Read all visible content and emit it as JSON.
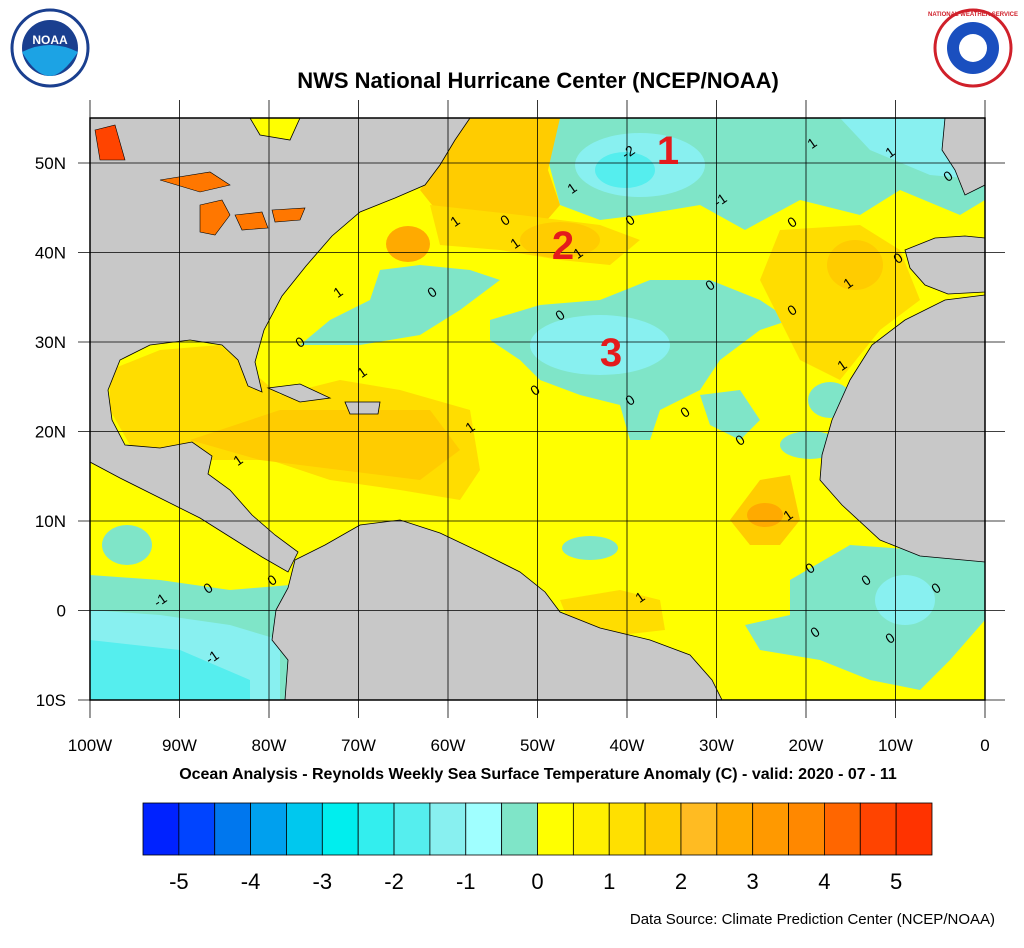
{
  "header": {
    "title": "NWS National Hurricane Center (NCEP/NOAA)",
    "logo_left": "NOAA",
    "logo_right": "NATIONAL WEATHER SERVICE"
  },
  "map": {
    "lat_labels": [
      "50N",
      "40N",
      "30N",
      "20N",
      "10N",
      "0",
      "10S"
    ],
    "lon_labels": [
      "100W",
      "90W",
      "80W",
      "70W",
      "60W",
      "50W",
      "40W",
      "30W",
      "20W",
      "10W",
      "0"
    ],
    "region_labels": [
      "1",
      "2",
      "3"
    ],
    "contour_labels": [
      "-2",
      "1",
      "-1",
      "1",
      "1",
      "0",
      "0",
      "0",
      "0",
      "1",
      "0",
      "1",
      "1",
      "1",
      "0",
      "1",
      "0",
      "1",
      "0",
      "0",
      "0",
      "1",
      "0",
      "0",
      "0",
      "0",
      "1",
      "1",
      "1",
      "0",
      "0",
      "0",
      "1",
      "0",
      "0",
      "0",
      "0",
      "-1",
      "-1"
    ]
  },
  "caption": "Ocean Analysis - Reynolds Weekly Sea Surface Temperature Anomaly (C) - valid: 2020 - 07 - 11",
  "colorbar": {
    "colors": [
      "#0022ff",
      "#0044ff",
      "#0077ee",
      "#00a0ee",
      "#00c8ee",
      "#00eeee",
      "#33eeee",
      "#55eeee",
      "#88f0f0",
      "#a0ffff",
      "#7fe5c8",
      "#ffff00",
      "#fff000",
      "#ffe000",
      "#ffcc00",
      "#ffbb22",
      "#ffaa00",
      "#ff9900",
      "#ff8800",
      "#ff6600",
      "#ff4400",
      "#ff3300"
    ],
    "labels": [
      "-5",
      "-4",
      "-3",
      "-2",
      "-1",
      "0",
      "1",
      "2",
      "3",
      "4",
      "5"
    ]
  },
  "source": "Data Source: Climate Prediction Center (NCEP/NOAA)"
}
